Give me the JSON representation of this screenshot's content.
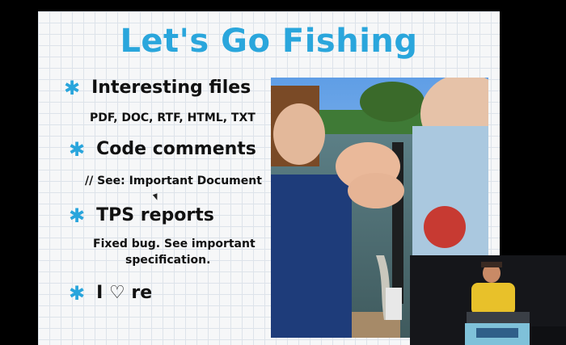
{
  "slide": {
    "title": "Let's Go Fishing",
    "bullets": [
      {
        "label": "Interesting files",
        "detail": "PDF, DOC, RTF, HTML, TXT"
      },
      {
        "label": "Code comments",
        "detail": "// See: Important Document"
      },
      {
        "label": "TPS reports",
        "detail_line1": "Fixed bug.  See important",
        "detail_line2": "specification."
      },
      {
        "label_pre": "I",
        "label_heart": "♡",
        "label_post": "re"
      }
    ]
  },
  "icons": {
    "bullet": "asterisk-bullet-icon",
    "heart": "heart-outline-icon"
  },
  "colors": {
    "accent": "#2aa6dc",
    "background": "#000000",
    "slide_bg": "#f6f7f8"
  }
}
